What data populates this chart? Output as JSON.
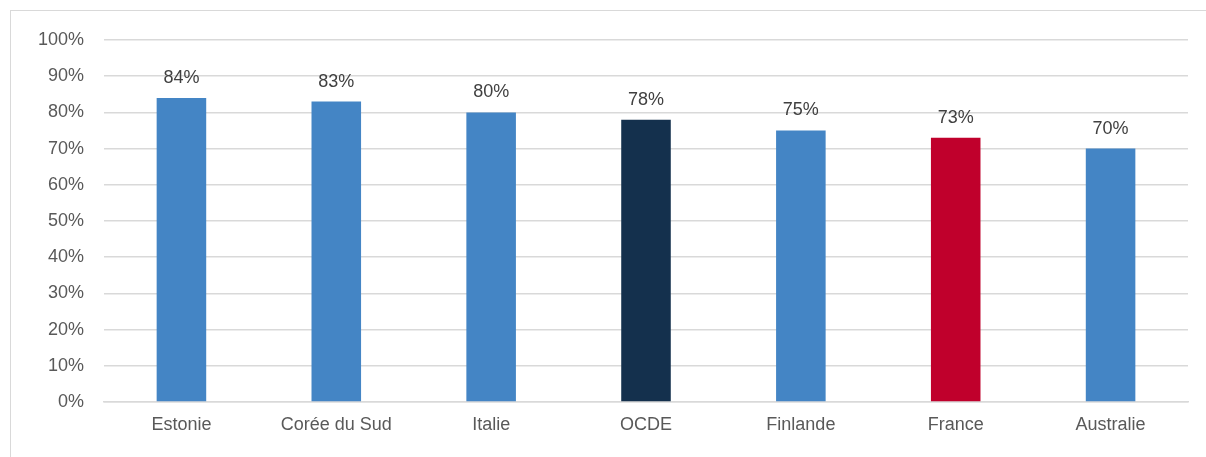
{
  "chart_data": {
    "type": "bar",
    "categories": [
      "Estonie",
      "Corée du Sud",
      "Italie",
      "OCDE",
      "Finlande",
      "France",
      "Australie"
    ],
    "values": [
      84,
      83,
      80,
      78,
      75,
      73,
      70
    ],
    "colors": [
      "#4485c5",
      "#4485c5",
      "#4485c5",
      "#14304d",
      "#4485c5",
      "#c0002c",
      "#4485c5"
    ],
    "value_labels": [
      "84%",
      "83%",
      "80%",
      "78%",
      "75%",
      "73%",
      "70%"
    ],
    "ylim": [
      0,
      100
    ],
    "yticks": [
      {
        "value": 0,
        "label": "0%"
      },
      {
        "value": 10,
        "label": "10%"
      },
      {
        "value": 20,
        "label": "20%"
      },
      {
        "value": 30,
        "label": "30%"
      },
      {
        "value": 40,
        "label": "40%"
      },
      {
        "value": 50,
        "label": "50%"
      },
      {
        "value": 60,
        "label": "60%"
      },
      {
        "value": 70,
        "label": "70%"
      },
      {
        "value": 80,
        "label": "80%"
      },
      {
        "value": 90,
        "label": "90%"
      },
      {
        "value": 100,
        "label": "100%"
      }
    ],
    "grid": "y"
  }
}
